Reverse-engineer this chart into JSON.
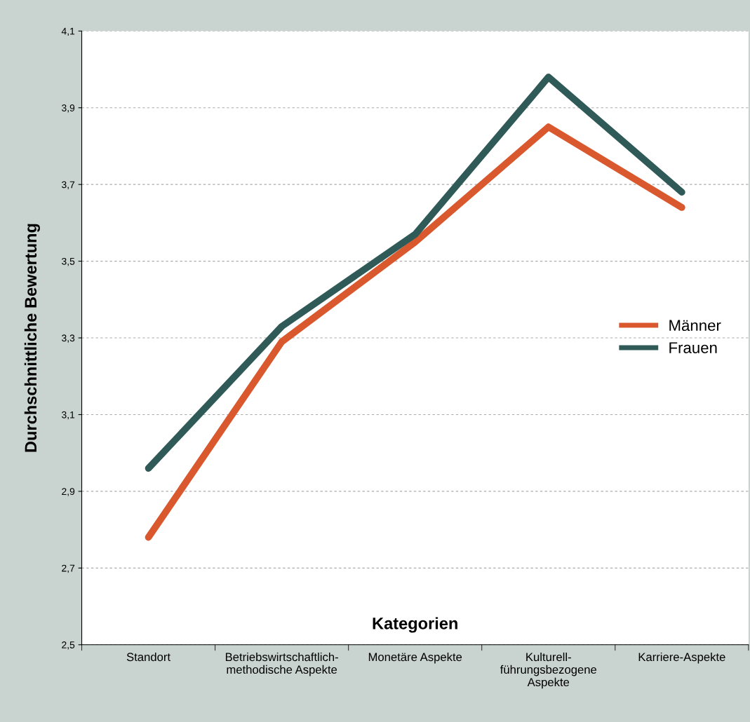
{
  "chart_data": {
    "type": "line",
    "ylabel": "Durchschnittliche Bewertung",
    "xlabel": "Kategorien",
    "categories": [
      "Standort",
      "Betriebswirtschaftlich-\nmethodische Aspekte",
      "Monetäre Aspekte",
      "Kulturell-\nführungsbezogene\nAspekte",
      "Karriere-Aspekte"
    ],
    "series": [
      {
        "name": "Männer",
        "color": "#d9582e",
        "values": [
          2.78,
          3.29,
          3.55,
          3.85,
          3.64
        ]
      },
      {
        "name": "Frauen",
        "color": "#2f5a57",
        "values": [
          2.96,
          3.33,
          3.57,
          3.98,
          3.68
        ]
      }
    ],
    "ylim": [
      2.5,
      4.1
    ],
    "yticks": [
      {
        "value": 2.5,
        "label": "2,5"
      },
      {
        "value": 2.7,
        "label": "2,7"
      },
      {
        "value": 2.9,
        "label": "2,9"
      },
      {
        "value": 3.1,
        "label": "3,1"
      },
      {
        "value": 3.3,
        "label": "3,3"
      },
      {
        "value": 3.5,
        "label": "3,5"
      },
      {
        "value": 3.7,
        "label": "3,7"
      },
      {
        "value": 3.9,
        "label": "3,9"
      },
      {
        "value": 4.1,
        "label": "4,1"
      }
    ],
    "grid": "y",
    "legend": "right",
    "marker": "none",
    "line_style": "solid"
  }
}
